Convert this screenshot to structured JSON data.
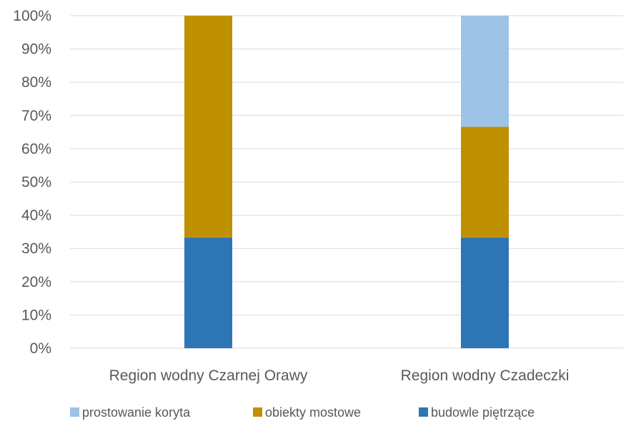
{
  "chart_data": {
    "type": "bar",
    "stacked": true,
    "percent": true,
    "categories": [
      "Region wodny Czarnej Orawy",
      "Region wodny Czadeczki"
    ],
    "series": [
      {
        "name": "budowle piętrzące",
        "color": "#2e75b6",
        "values": [
          33.3,
          33.3
        ]
      },
      {
        "name": "obiekty mostowe",
        "color": "#bf9000",
        "values": [
          66.7,
          33.3
        ]
      },
      {
        "name": "prostowanie koryta",
        "color": "#9dc3e6",
        "values": [
          0,
          33.4
        ]
      }
    ],
    "y_ticks": [
      "0%",
      "10%",
      "20%",
      "30%",
      "40%",
      "50%",
      "60%",
      "70%",
      "80%",
      "90%",
      "100%"
    ],
    "ylim": [
      0,
      100
    ],
    "grid": true,
    "legend_position": "bottom",
    "legend_order": [
      "prostowanie koryta",
      "obiekty mostowe",
      "budowle piętrzące"
    ]
  }
}
